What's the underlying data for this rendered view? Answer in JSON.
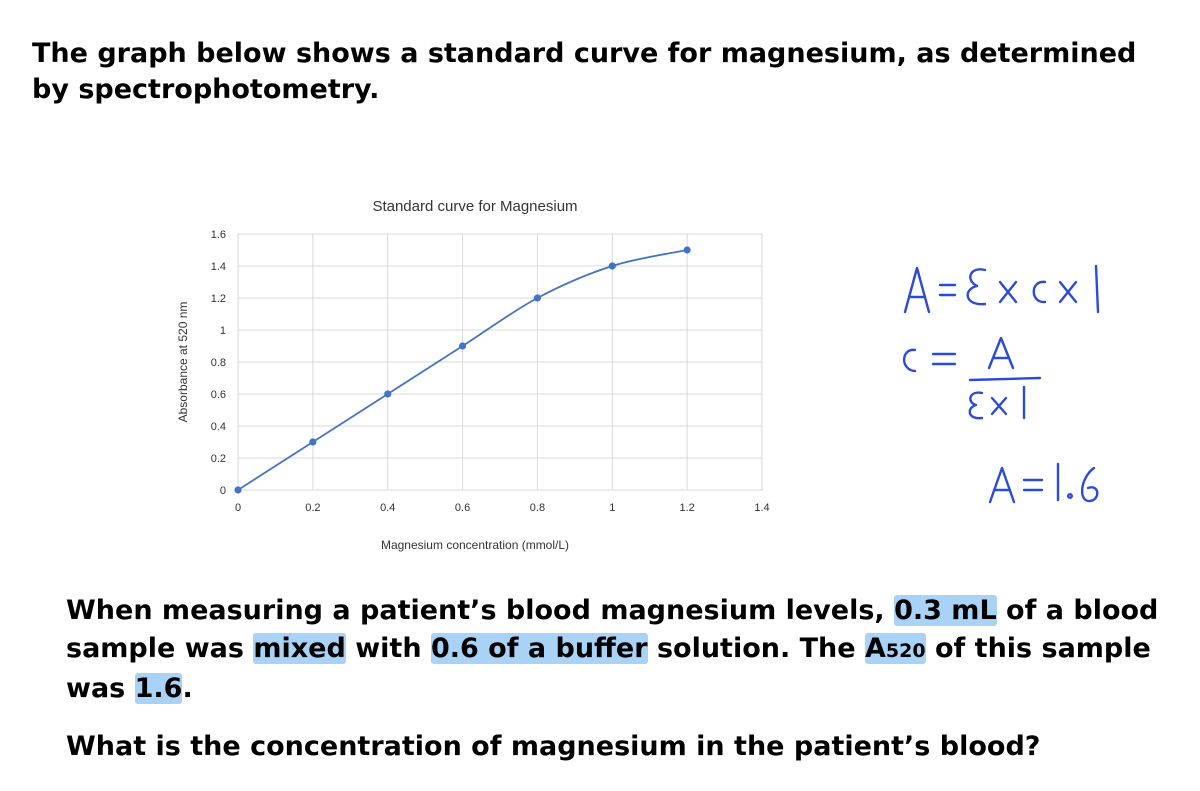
{
  "intro_text": "The graph below shows a standard curve for magnesium, as determined by spectrophotometry.",
  "chart_data": {
    "type": "line",
    "title": "Standard curve for Magnesium",
    "xlabel": "Magnesium concentration (mmol/L)",
    "ylabel": "Absorbance at 520 nm",
    "x": [
      0,
      0.2,
      0.4,
      0.6,
      0.8,
      1,
      1.2
    ],
    "series": [
      {
        "values": [
          0,
          0.3,
          0.6,
          0.9,
          1.2,
          1.4,
          1.5
        ]
      }
    ],
    "xlim": [
      0,
      1.4
    ],
    "ylim": [
      0,
      1.6
    ],
    "x_ticks": [
      "0",
      "0.2",
      "0.4",
      "0.6",
      "0.8",
      "1",
      "1.2",
      "1.4"
    ],
    "y_ticks": [
      "0",
      "0.2",
      "0.4",
      "0.6",
      "0.8",
      "1",
      "1.2",
      "1.4",
      "1.6"
    ],
    "grid": true,
    "color": "#4472c4"
  },
  "handwritten_notes": [
    "A = ε x c x l",
    "c = A / ε x l",
    "A = 1.6"
  ],
  "question": {
    "part1": "When measuring a patient’s blood magnesium levels, ",
    "hl1": "0.3 mL",
    "part2": " of a blood sample was ",
    "hl2": "mixed",
    "part3": " with ",
    "hl3": "0.6 of a buffer",
    "part4": " solution. The ",
    "hl4_main": "A",
    "hl4_sub": "520",
    "part5": " of this sample was ",
    "hl5": "1.6",
    "part6": "."
  },
  "final_question": "What is the concentration of magnesium in the patient’s blood?",
  "highlight_color": "#a9d2f7",
  "ink_color": "#2a4bd7"
}
